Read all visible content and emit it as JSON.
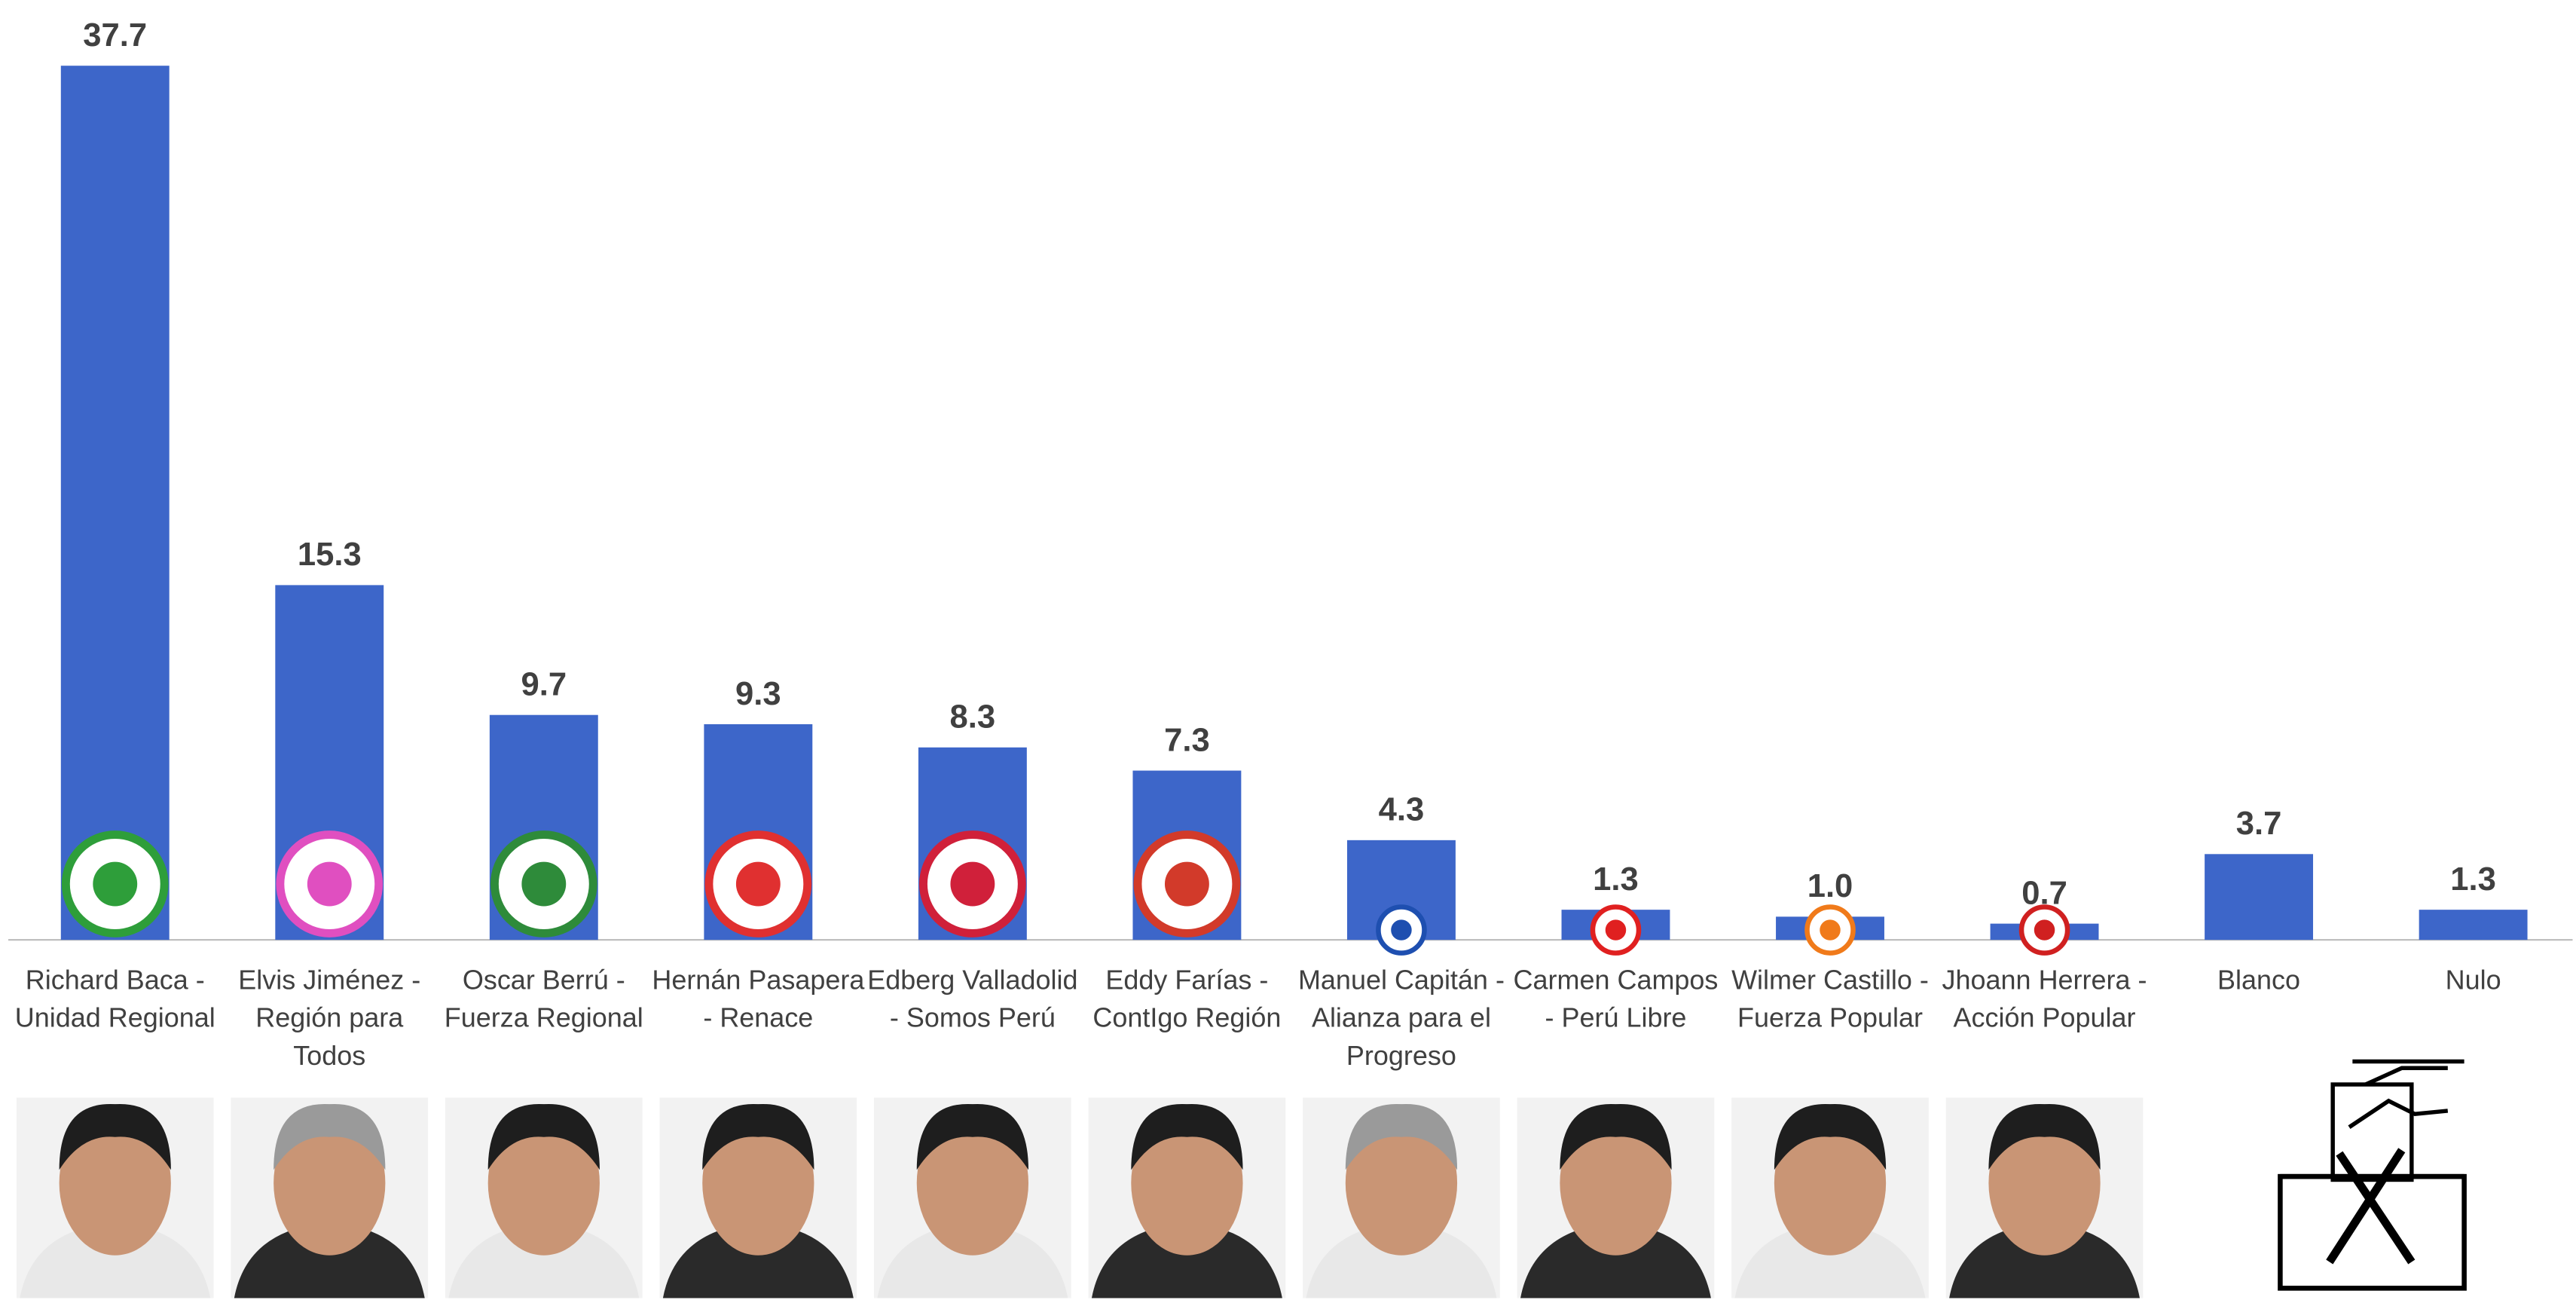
{
  "chart_data": {
    "type": "bar",
    "categories": [
      "Richard Baca - Unidad Regional",
      "Elvis Jiménez - Región para Todos",
      "Oscar Berrú - Fuerza Regional",
      "Hernán Pasapera - Renace",
      "Edberg Valladolid - Somos Perú",
      "Eddy Farías - ContIgo Región",
      "Manuel Capitán - Alianza para el Progreso",
      "Carmen Campos - Perú Libre",
      "Wilmer Castillo - Fuerza Popular",
      "Jhoann Herrera - Acción Popular",
      "Blanco",
      "Nulo"
    ],
    "values": [
      37.7,
      15.3,
      9.7,
      9.3,
      8.3,
      7.3,
      4.3,
      1.3,
      1.0,
      0.7,
      3.7,
      1.3
    ],
    "value_labels": [
      "37.7",
      "15.3",
      "9.7",
      "9.3",
      "8.3",
      "7.3",
      "4.3",
      "1.3",
      "1.0",
      "0.7",
      "3.7",
      "1.3"
    ],
    "color": "#3d66c9"
  }
}
